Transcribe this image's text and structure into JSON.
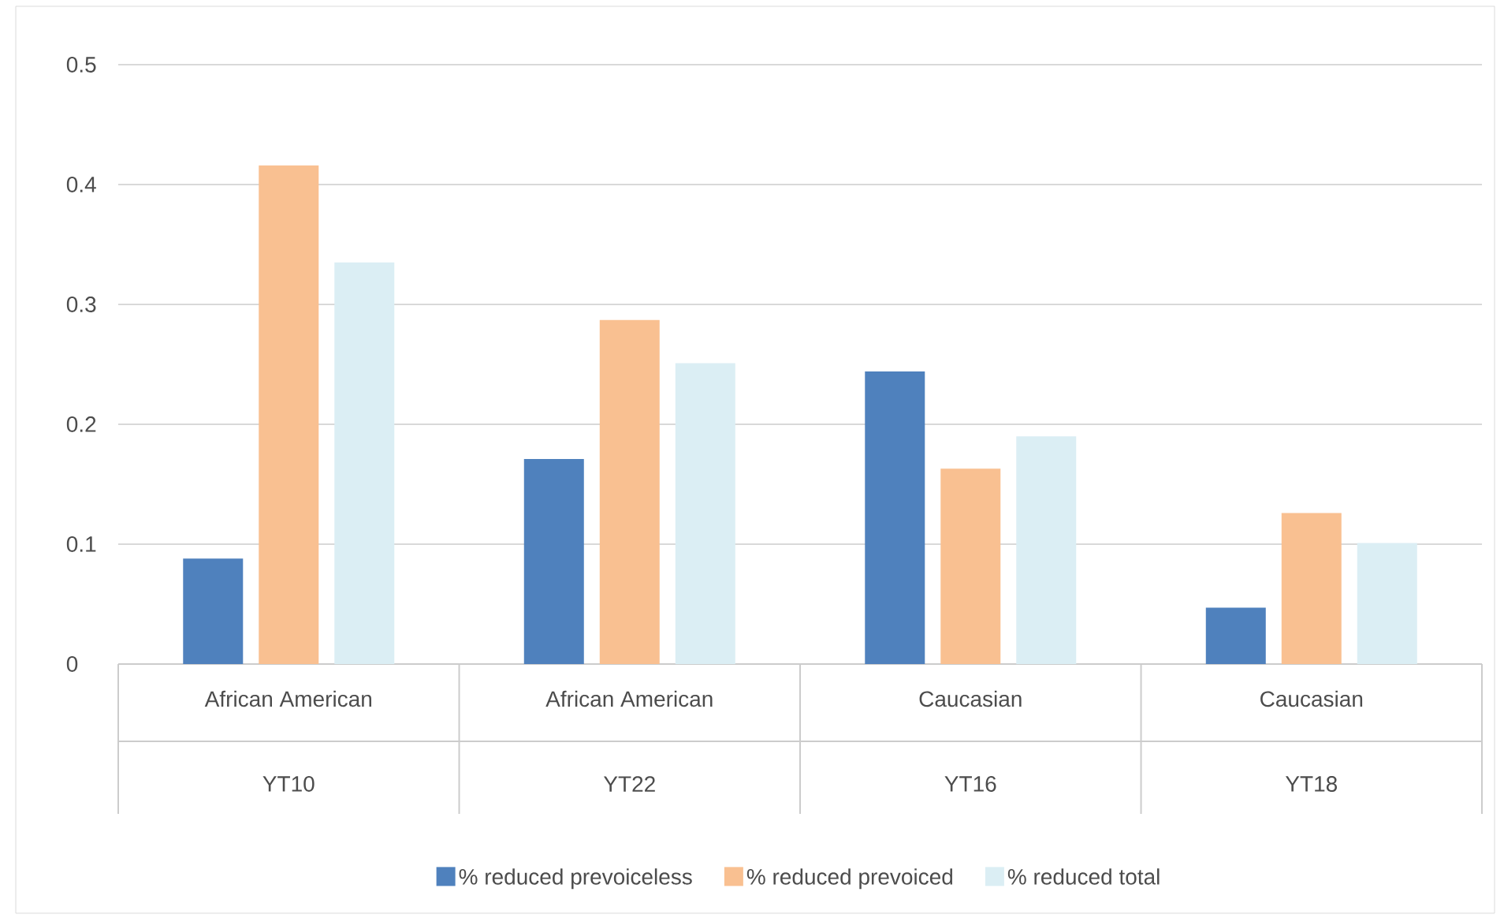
{
  "chart_data": {
    "type": "bar",
    "categories": [
      "African American",
      "African American",
      "Caucasian",
      "Caucasian"
    ],
    "annotations": [
      "YT10",
      "YT22",
      "YT16",
      "YT18"
    ],
    "series": [
      {
        "name": "% reduced prevoiceless",
        "color": "#4f81bd",
        "values": [
          0.088,
          0.171,
          0.244,
          0.047
        ]
      },
      {
        "name": "% reduced prevoiced",
        "color": "#f9c091",
        "values": [
          0.416,
          0.287,
          0.163,
          0.126
        ]
      },
      {
        "name": "% reduced total",
        "color": "#dbeef4",
        "values": [
          0.335,
          0.251,
          0.19,
          0.101
        ]
      }
    ],
    "ylim": [
      0,
      0.5
    ],
    "yticks": [
      0,
      0.1,
      0.2,
      0.3,
      0.4,
      0.5
    ],
    "grid": "y",
    "legend": "bottom"
  }
}
